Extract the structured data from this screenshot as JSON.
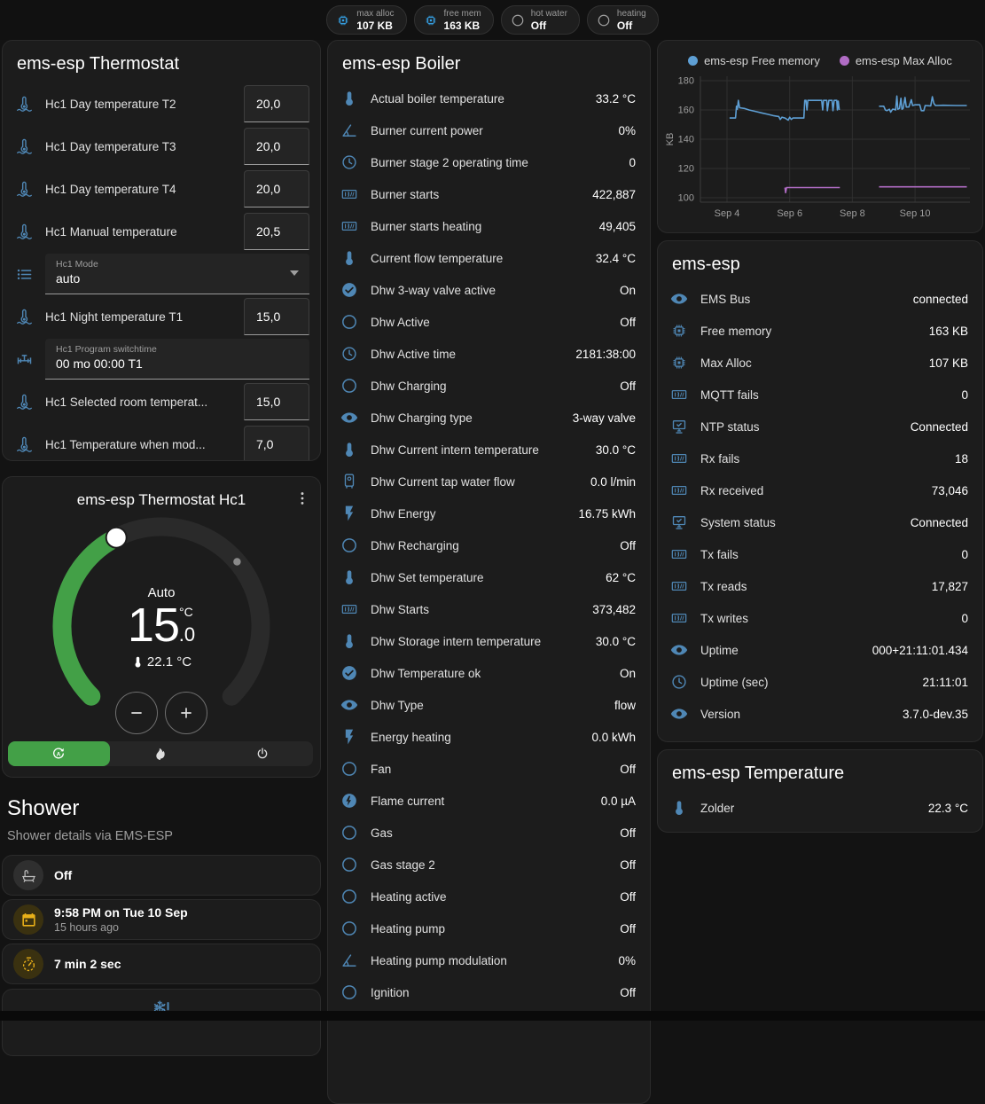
{
  "header": {
    "chips": [
      {
        "icon": "chip",
        "icon_color": "#36a3e8",
        "label": "max alloc",
        "value": "107 KB"
      },
      {
        "icon": "chip",
        "icon_color": "#36a3e8",
        "label": "free mem",
        "value": "163 KB"
      },
      {
        "icon": "circle-outline",
        "icon_color": "#9e9e9e",
        "label": "hot water",
        "value": "Off"
      },
      {
        "icon": "circle-outline",
        "icon_color": "#9e9e9e",
        "label": "heating",
        "value": "Off"
      }
    ]
  },
  "thermostat_card": {
    "title": "ems-esp Thermostat",
    "rows": [
      {
        "type": "number",
        "icon": "thermometer-water",
        "label": "Hc1 Day temperature T2",
        "value": "20,0"
      },
      {
        "type": "number",
        "icon": "thermometer-water",
        "label": "Hc1 Day temperature T3",
        "value": "20,0"
      },
      {
        "type": "number",
        "icon": "thermometer-water",
        "label": "Hc1 Day temperature T4",
        "value": "20,0"
      },
      {
        "type": "number",
        "icon": "thermometer-water",
        "label": "Hc1 Manual temperature",
        "value": "20,5"
      },
      {
        "type": "select",
        "icon": "list",
        "label": "Hc1 Mode",
        "value": "auto"
      },
      {
        "type": "number",
        "icon": "thermometer-water",
        "label": "Hc1 Night temperature T1",
        "value": "15,0"
      },
      {
        "type": "textfield",
        "icon": "pipe-valve",
        "label": "Hc1 Program switchtime",
        "value": "00 mo 00:00 T1"
      },
      {
        "type": "number",
        "icon": "thermometer-water",
        "label": "Hc1 Selected room temperat...",
        "value": "15,0"
      },
      {
        "type": "number",
        "icon": "thermometer-water",
        "label": "Hc1 Temperature when mod...",
        "value": "7,0"
      }
    ]
  },
  "dial_card": {
    "title": "ems-esp Thermostat Hc1",
    "mode_label": "Auto",
    "target_display": {
      "int": "15",
      "frac": ".0",
      "unit": "°C"
    },
    "current_label": "22.1 °C",
    "min": 5,
    "max": 30,
    "target": 15.0,
    "current": 22.1,
    "accent": "#43a047",
    "modes": [
      {
        "icon": "auto",
        "name": "auto-mode",
        "active": true
      },
      {
        "icon": "fire",
        "name": "heat-mode",
        "active": false
      },
      {
        "icon": "power",
        "name": "off-mode",
        "active": false
      }
    ]
  },
  "shower": {
    "title": "Shower",
    "subtitle": "Shower details via EMS-ESP",
    "cards": [
      {
        "icon": "bathtub",
        "icon_color": "#bdbdbd",
        "bg": "#2f2f2f",
        "primary": "Off",
        "secondary": ""
      },
      {
        "icon": "calendar",
        "icon_color": "#e8b019",
        "bg": "#3a3110",
        "primary": "9:58 PM on Tue 10 Sep",
        "secondary": "15 hours ago"
      },
      {
        "icon": "timer",
        "icon_color": "#e8b019",
        "bg": "#3a3110",
        "primary": "7 min 2 sec",
        "secondary": ""
      },
      {
        "icon": "snowflake-alert",
        "icon_color": "#4f87b5",
        "bg": "",
        "primary": "",
        "secondary": "",
        "centered": true
      }
    ]
  },
  "boiler": {
    "title": "ems-esp Boiler",
    "rows": [
      {
        "icon": "thermometer",
        "label": "Actual boiler temperature",
        "value": "33.2 °C"
      },
      {
        "icon": "angle-acute",
        "label": "Burner current power",
        "value": "0%"
      },
      {
        "icon": "clock",
        "label": "Burner stage 2 operating time",
        "value": "0"
      },
      {
        "icon": "counter",
        "label": "Burner starts",
        "value": "422,887"
      },
      {
        "icon": "counter",
        "label": "Burner starts heating",
        "value": "49,405"
      },
      {
        "icon": "thermometer",
        "label": "Current flow temperature",
        "value": "32.4 °C"
      },
      {
        "icon": "check-circle",
        "label": "Dhw 3-way valve active",
        "value": "On"
      },
      {
        "icon": "circle-outline",
        "label": "Dhw Active",
        "value": "Off"
      },
      {
        "icon": "clock",
        "label": "Dhw Active time",
        "value": "2181:38:00"
      },
      {
        "icon": "circle-outline",
        "label": "Dhw Charging",
        "value": "Off"
      },
      {
        "icon": "eye",
        "label": "Dhw Charging type",
        "value": "3-way valve"
      },
      {
        "icon": "thermometer",
        "label": "Dhw Current intern temperature",
        "value": "30.0 °C"
      },
      {
        "icon": "water-boiler",
        "label": "Dhw Current tap water flow",
        "value": "0.0 l/min"
      },
      {
        "icon": "flash",
        "label": "Dhw Energy",
        "value": "16.75 kWh"
      },
      {
        "icon": "circle-outline",
        "label": "Dhw Recharging",
        "value": "Off"
      },
      {
        "icon": "thermometer",
        "label": "Dhw Set temperature",
        "value": "62 °C"
      },
      {
        "icon": "counter",
        "label": "Dhw Starts",
        "value": "373,482"
      },
      {
        "icon": "thermometer",
        "label": "Dhw Storage intern temperature",
        "value": "30.0 °C"
      },
      {
        "icon": "check-circle",
        "label": "Dhw Temperature ok",
        "value": "On"
      },
      {
        "icon": "eye",
        "label": "Dhw Type",
        "value": "flow"
      },
      {
        "icon": "flash",
        "label": "Energy heating",
        "value": "0.0 kWh"
      },
      {
        "icon": "circle-outline",
        "label": "Fan",
        "value": "Off"
      },
      {
        "icon": "flash-circle",
        "label": "Flame current",
        "value": "0.0 µA"
      },
      {
        "icon": "circle-outline",
        "label": "Gas",
        "value": "Off"
      },
      {
        "icon": "circle-outline",
        "label": "Gas stage 2",
        "value": "Off"
      },
      {
        "icon": "circle-outline",
        "label": "Heating active",
        "value": "Off"
      },
      {
        "icon": "circle-outline",
        "label": "Heating pump",
        "value": "Off"
      },
      {
        "icon": "angle-acute",
        "label": "Heating pump modulation",
        "value": "0%"
      },
      {
        "icon": "circle-outline",
        "label": "Ignition",
        "value": "Off"
      }
    ]
  },
  "emsesp": {
    "title": "ems-esp",
    "rows": [
      {
        "icon": "eye",
        "label": "EMS Bus",
        "value": "connected"
      },
      {
        "icon": "chip",
        "label": "Free memory",
        "value": "163 KB"
      },
      {
        "icon": "chip",
        "label": "Max Alloc",
        "value": "107 KB"
      },
      {
        "icon": "counter",
        "label": "MQTT fails",
        "value": "0"
      },
      {
        "icon": "network",
        "label": "NTP status",
        "value": "Connected"
      },
      {
        "icon": "counter",
        "label": "Rx fails",
        "value": "18"
      },
      {
        "icon": "counter",
        "label": "Rx received",
        "value": "73,046"
      },
      {
        "icon": "network",
        "label": "System status",
        "value": "Connected"
      },
      {
        "icon": "counter",
        "label": "Tx fails",
        "value": "0"
      },
      {
        "icon": "counter",
        "label": "Tx reads",
        "value": "17,827"
      },
      {
        "icon": "counter",
        "label": "Tx writes",
        "value": "0"
      },
      {
        "icon": "eye",
        "label": "Uptime",
        "value": "000+21:11:01.434"
      },
      {
        "icon": "clock",
        "label": "Uptime (sec)",
        "value": "21:11:01"
      },
      {
        "icon": "eye",
        "label": "Version",
        "value": "3.7.0-dev.35"
      }
    ]
  },
  "temperature": {
    "title": "ems-esp Temperature",
    "rows": [
      {
        "icon": "thermometer",
        "label": "Zolder",
        "value": "22.3 °C"
      }
    ]
  },
  "chart_data": {
    "type": "line",
    "ylabel": "KB",
    "ylim": [
      97,
      183
    ],
    "yticks": [
      100,
      120,
      140,
      160,
      180
    ],
    "xlim": [
      3.15,
      11.75
    ],
    "xticks": [
      {
        "v": 4,
        "label": "Sep 4"
      },
      {
        "v": 6,
        "label": "Sep 6"
      },
      {
        "v": 8,
        "label": "Sep 8"
      },
      {
        "v": 10,
        "label": "Sep 10"
      }
    ],
    "grid": true,
    "legend_position": "top",
    "series": [
      {
        "name": "ems-esp Free memory",
        "color": "#5e9fd4",
        "segments": [
          [
            [
              4.08,
              154.5
            ],
            [
              4.27,
              154.5
            ],
            [
              4.3,
              162.5
            ],
            [
              4.33,
              160.5
            ],
            [
              4.36,
              166.5
            ],
            [
              4.4,
              161.5
            ],
            [
              4.55,
              161
            ],
            [
              4.7,
              160
            ],
            [
              4.9,
              159
            ],
            [
              5.1,
              158
            ],
            [
              5.3,
              157
            ],
            [
              5.5,
              156
            ],
            [
              5.65,
              155.5
            ],
            [
              5.7,
              153.5
            ],
            [
              5.75,
              155
            ],
            [
              5.85,
              154.5
            ],
            [
              5.95,
              153
            ],
            [
              6.0,
              155
            ],
            [
              6.05,
              153.5
            ],
            [
              6.1,
              154.5
            ],
            [
              6.45,
              154.5
            ],
            [
              6.48,
              166.5
            ],
            [
              6.52,
              166.5
            ],
            [
              6.55,
              160
            ],
            [
              6.58,
              166.5
            ],
            [
              7.02,
              166.5
            ],
            [
              7.05,
              160
            ],
            [
              7.08,
              166.5
            ],
            [
              7.18,
              166.5
            ],
            [
              7.2,
              159.5
            ],
            [
              7.25,
              166.5
            ],
            [
              7.35,
              166.5
            ],
            [
              7.38,
              159.5
            ],
            [
              7.42,
              166.5
            ],
            [
              7.5,
              166.5
            ],
            [
              7.52,
              160
            ],
            [
              7.55,
              166
            ],
            [
              7.58,
              160
            ]
          ],
          [
            [
              8.85,
              162.5
            ],
            [
              9.0,
              162.5
            ],
            [
              9.05,
              160
            ],
            [
              9.1,
              159.5
            ],
            [
              9.18,
              160.5
            ],
            [
              9.22,
              158.5
            ],
            [
              9.28,
              160.5
            ],
            [
              9.32,
              160.5
            ],
            [
              9.38,
              160
            ],
            [
              9.42,
              169.5
            ],
            [
              9.45,
              160.5
            ],
            [
              9.5,
              161
            ],
            [
              9.55,
              168
            ],
            [
              9.58,
              160.5
            ],
            [
              9.62,
              161
            ],
            [
              9.68,
              168.5
            ],
            [
              9.72,
              162
            ],
            [
              9.8,
              162
            ],
            [
              9.88,
              167
            ],
            [
              9.92,
              163
            ],
            [
              10.0,
              163.5
            ],
            [
              10.15,
              163.5
            ],
            [
              10.2,
              159.5
            ],
            [
              10.28,
              159.5
            ],
            [
              10.32,
              163
            ],
            [
              10.5,
              162.8
            ],
            [
              10.55,
              169
            ],
            [
              10.6,
              164.5
            ],
            [
              10.65,
              163
            ],
            [
              10.9,
              163.2
            ],
            [
              11.3,
              163
            ],
            [
              11.65,
              163
            ]
          ]
        ]
      },
      {
        "name": "ems-esp Max Alloc",
        "color": "#b06cc4",
        "segments": [
          [
            [
              5.85,
              107
            ],
            [
              5.87,
              103.5
            ],
            [
              5.9,
              107
            ],
            [
              7.6,
              107
            ]
          ],
          [
            [
              8.85,
              107.5
            ],
            [
              11.65,
              107.5
            ]
          ]
        ]
      }
    ]
  }
}
